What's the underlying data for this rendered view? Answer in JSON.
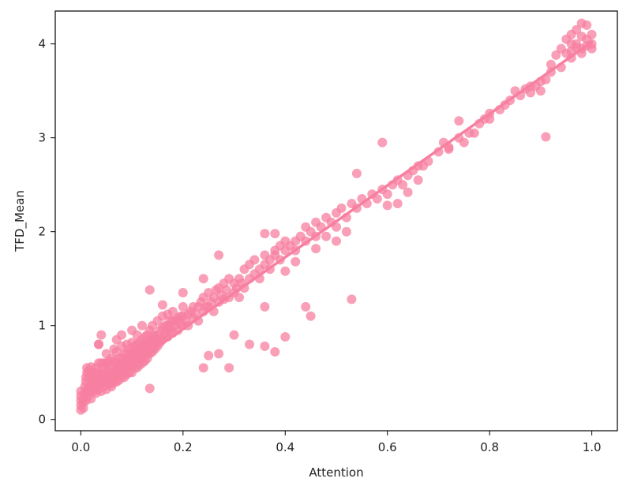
{
  "chart_data": {
    "type": "scatter",
    "xlabel": "Attention",
    "ylabel": "TFD_Mean",
    "xlim": [
      -0.05,
      1.05
    ],
    "ylim": [
      -0.12,
      4.35
    ],
    "xticks": [
      0.0,
      0.2,
      0.4,
      0.6,
      0.8,
      1.0
    ],
    "xtick_labels": [
      "0.0",
      "0.2",
      "0.4",
      "0.6",
      "0.8",
      "1.0"
    ],
    "yticks": [
      0,
      1,
      2,
      3,
      4
    ],
    "ytick_labels": [
      "0",
      "1",
      "2",
      "3",
      "4"
    ],
    "grid": false,
    "legend": "none",
    "color": "#f77fa0",
    "regression_line": {
      "x": [
        0.0,
        1.0
      ],
      "y": [
        0.2,
        4.02
      ]
    },
    "points": [
      [
        0.0,
        0.1
      ],
      [
        0.0,
        0.15
      ],
      [
        0.0,
        0.2
      ],
      [
        0.0,
        0.25
      ],
      [
        0.0,
        0.3
      ],
      [
        0.005,
        0.12
      ],
      [
        0.005,
        0.18
      ],
      [
        0.005,
        0.22
      ],
      [
        0.008,
        0.28
      ],
      [
        0.008,
        0.35
      ],
      [
        0.01,
        0.2
      ],
      [
        0.01,
        0.3
      ],
      [
        0.01,
        0.4
      ],
      [
        0.012,
        0.5
      ],
      [
        0.012,
        0.55
      ],
      [
        0.015,
        0.25
      ],
      [
        0.015,
        0.35
      ],
      [
        0.015,
        0.45
      ],
      [
        0.018,
        0.3
      ],
      [
        0.02,
        0.22
      ],
      [
        0.02,
        0.35
      ],
      [
        0.02,
        0.48
      ],
      [
        0.02,
        0.56
      ],
      [
        0.022,
        0.4
      ],
      [
        0.025,
        0.3
      ],
      [
        0.025,
        0.38
      ],
      [
        0.025,
        0.5
      ],
      [
        0.028,
        0.42
      ],
      [
        0.03,
        0.28
      ],
      [
        0.03,
        0.35
      ],
      [
        0.03,
        0.45
      ],
      [
        0.03,
        0.55
      ],
      [
        0.032,
        0.5
      ],
      [
        0.035,
        0.32
      ],
      [
        0.035,
        0.42
      ],
      [
        0.035,
        0.6
      ],
      [
        0.035,
        0.8
      ],
      [
        0.038,
        0.38
      ],
      [
        0.04,
        0.3
      ],
      [
        0.04,
        0.4
      ],
      [
        0.04,
        0.5
      ],
      [
        0.04,
        0.6
      ],
      [
        0.042,
        0.45
      ],
      [
        0.045,
        0.35
      ],
      [
        0.045,
        0.48
      ],
      [
        0.045,
        0.55
      ],
      [
        0.048,
        0.42
      ],
      [
        0.05,
        0.32
      ],
      [
        0.05,
        0.4
      ],
      [
        0.05,
        0.5
      ],
      [
        0.05,
        0.6
      ],
      [
        0.05,
        0.7
      ],
      [
        0.052,
        0.45
      ],
      [
        0.055,
        0.38
      ],
      [
        0.055,
        0.48
      ],
      [
        0.055,
        0.62
      ],
      [
        0.058,
        0.42
      ],
      [
        0.06,
        0.35
      ],
      [
        0.06,
        0.45
      ],
      [
        0.06,
        0.55
      ],
      [
        0.06,
        0.65
      ],
      [
        0.062,
        0.5
      ],
      [
        0.065,
        0.4
      ],
      [
        0.065,
        0.5
      ],
      [
        0.065,
        0.62
      ],
      [
        0.065,
        0.75
      ],
      [
        0.068,
        0.48
      ],
      [
        0.07,
        0.4
      ],
      [
        0.07,
        0.52
      ],
      [
        0.07,
        0.6
      ],
      [
        0.07,
        0.72
      ],
      [
        0.07,
        0.85
      ],
      [
        0.072,
        0.55
      ],
      [
        0.075,
        0.42
      ],
      [
        0.075,
        0.5
      ],
      [
        0.075,
        0.65
      ],
      [
        0.078,
        0.55
      ],
      [
        0.08,
        0.45
      ],
      [
        0.08,
        0.55
      ],
      [
        0.08,
        0.65
      ],
      [
        0.08,
        0.78
      ],
      [
        0.08,
        0.9
      ],
      [
        0.082,
        0.6
      ],
      [
        0.085,
        0.45
      ],
      [
        0.085,
        0.58
      ],
      [
        0.085,
        0.7
      ],
      [
        0.088,
        0.6
      ],
      [
        0.09,
        0.48
      ],
      [
        0.09,
        0.6
      ],
      [
        0.09,
        0.7
      ],
      [
        0.09,
        0.8
      ],
      [
        0.092,
        0.65
      ],
      [
        0.095,
        0.5
      ],
      [
        0.095,
        0.62
      ],
      [
        0.095,
        0.75
      ],
      [
        0.098,
        0.68
      ],
      [
        0.1,
        0.5
      ],
      [
        0.1,
        0.62
      ],
      [
        0.1,
        0.72
      ],
      [
        0.1,
        0.82
      ],
      [
        0.1,
        0.95
      ],
      [
        0.102,
        0.7
      ],
      [
        0.105,
        0.55
      ],
      [
        0.105,
        0.65
      ],
      [
        0.105,
        0.78
      ],
      [
        0.108,
        0.7
      ],
      [
        0.11,
        0.55
      ],
      [
        0.11,
        0.68
      ],
      [
        0.11,
        0.8
      ],
      [
        0.11,
        0.9
      ],
      [
        0.112,
        0.75
      ],
      [
        0.115,
        0.58
      ],
      [
        0.115,
        0.7
      ],
      [
        0.115,
        0.82
      ],
      [
        0.118,
        0.72
      ],
      [
        0.12,
        0.6
      ],
      [
        0.12,
        0.72
      ],
      [
        0.12,
        0.85
      ],
      [
        0.12,
        1.0
      ],
      [
        0.122,
        0.78
      ],
      [
        0.125,
        0.62
      ],
      [
        0.125,
        0.75
      ],
      [
        0.125,
        0.88
      ],
      [
        0.128,
        0.8
      ],
      [
        0.13,
        0.65
      ],
      [
        0.13,
        0.78
      ],
      [
        0.13,
        0.9
      ],
      [
        0.132,
        0.82
      ],
      [
        0.135,
        0.7
      ],
      [
        0.135,
        0.8
      ],
      [
        0.135,
        0.95
      ],
      [
        0.138,
        0.85
      ],
      [
        0.14,
        0.72
      ],
      [
        0.14,
        0.85
      ],
      [
        0.14,
        1.0
      ],
      [
        0.142,
        0.9
      ],
      [
        0.145,
        0.75
      ],
      [
        0.145,
        0.88
      ],
      [
        0.148,
        0.82
      ],
      [
        0.15,
        0.78
      ],
      [
        0.15,
        0.9
      ],
      [
        0.15,
        1.05
      ],
      [
        0.155,
        0.82
      ],
      [
        0.155,
        0.95
      ],
      [
        0.16,
        0.85
      ],
      [
        0.16,
        0.98
      ],
      [
        0.16,
        1.1
      ],
      [
        0.165,
        0.9
      ],
      [
        0.165,
        1.0
      ],
      [
        0.17,
        0.88
      ],
      [
        0.17,
        1.0
      ],
      [
        0.17,
        1.12
      ],
      [
        0.175,
        0.95
      ],
      [
        0.175,
        1.05
      ],
      [
        0.18,
        0.92
      ],
      [
        0.18,
        1.05
      ],
      [
        0.18,
        1.15
      ],
      [
        0.185,
        1.0
      ],
      [
        0.19,
        0.95
      ],
      [
        0.19,
        1.08
      ],
      [
        0.195,
        1.02
      ],
      [
        0.2,
        1.0
      ],
      [
        0.2,
        1.1
      ],
      [
        0.2,
        1.2
      ],
      [
        0.205,
        1.05
      ],
      [
        0.21,
        1.12
      ],
      [
        0.21,
        1.0
      ],
      [
        0.215,
        1.15
      ],
      [
        0.22,
        1.08
      ],
      [
        0.22,
        1.2
      ],
      [
        0.225,
        1.12
      ],
      [
        0.23,
        1.2
      ],
      [
        0.23,
        1.05
      ],
      [
        0.235,
        1.25
      ],
      [
        0.24,
        1.15
      ],
      [
        0.24,
        1.3
      ],
      [
        0.245,
        1.2
      ],
      [
        0.25,
        1.2
      ],
      [
        0.25,
        1.35
      ],
      [
        0.255,
        1.25
      ],
      [
        0.26,
        1.15
      ],
      [
        0.26,
        1.3
      ],
      [
        0.265,
        1.38
      ],
      [
        0.27,
        1.25
      ],
      [
        0.27,
        1.4
      ],
      [
        0.275,
        1.32
      ],
      [
        0.28,
        1.28
      ],
      [
        0.28,
        1.45
      ],
      [
        0.285,
        1.38
      ],
      [
        0.29,
        1.3
      ],
      [
        0.29,
        1.5
      ],
      [
        0.3,
        1.35
      ],
      [
        0.3,
        1.45
      ],
      [
        0.305,
        1.4
      ],
      [
        0.31,
        1.3
      ],
      [
        0.31,
        1.5
      ],
      [
        0.315,
        1.45
      ],
      [
        0.32,
        1.4
      ],
      [
        0.32,
        1.6
      ],
      [
        0.33,
        1.5
      ],
      [
        0.33,
        1.65
      ],
      [
        0.34,
        1.55
      ],
      [
        0.34,
        1.7
      ],
      [
        0.35,
        1.6
      ],
      [
        0.35,
        1.5
      ],
      [
        0.36,
        1.65
      ],
      [
        0.36,
        1.75
      ],
      [
        0.37,
        1.7
      ],
      [
        0.37,
        1.6
      ],
      [
        0.38,
        1.75
      ],
      [
        0.38,
        1.8
      ],
      [
        0.39,
        1.7
      ],
      [
        0.39,
        1.85
      ],
      [
        0.4,
        1.8
      ],
      [
        0.4,
        1.9
      ],
      [
        0.41,
        1.85
      ],
      [
        0.42,
        1.9
      ],
      [
        0.42,
        1.8
      ],
      [
        0.43,
        1.95
      ],
      [
        0.44,
        1.9
      ],
      [
        0.44,
        2.05
      ],
      [
        0.45,
        2.0
      ],
      [
        0.46,
        2.1
      ],
      [
        0.46,
        1.95
      ],
      [
        0.47,
        2.05
      ],
      [
        0.48,
        2.15
      ],
      [
        0.49,
        2.1
      ],
      [
        0.5,
        2.2
      ],
      [
        0.5,
        2.05
      ],
      [
        0.51,
        2.25
      ],
      [
        0.52,
        2.15
      ],
      [
        0.53,
        2.3
      ],
      [
        0.54,
        2.25
      ],
      [
        0.55,
        2.35
      ],
      [
        0.56,
        2.3
      ],
      [
        0.57,
        2.4
      ],
      [
        0.58,
        2.35
      ],
      [
        0.59,
        2.45
      ],
      [
        0.6,
        2.4
      ],
      [
        0.61,
        2.5
      ],
      [
        0.62,
        2.55
      ],
      [
        0.63,
        2.5
      ],
      [
        0.64,
        2.6
      ],
      [
        0.65,
        2.65
      ],
      [
        0.66,
        2.7
      ],
      [
        0.68,
        2.75
      ],
      [
        0.7,
        2.85
      ],
      [
        0.72,
        2.9
      ],
      [
        0.74,
        3.0
      ],
      [
        0.76,
        3.05
      ],
      [
        0.78,
        3.15
      ],
      [
        0.8,
        3.2
      ],
      [
        0.82,
        3.3
      ],
      [
        0.84,
        3.4
      ],
      [
        0.86,
        3.45
      ],
      [
        0.88,
        3.55
      ],
      [
        0.9,
        3.6
      ],
      [
        0.92,
        3.7
      ],
      [
        0.94,
        3.75
      ],
      [
        0.96,
        3.85
      ],
      [
        0.98,
        3.95
      ],
      [
        1.0,
        4.0
      ],
      [
        0.01,
        0.45
      ],
      [
        0.015,
        0.52
      ],
      [
        0.03,
        0.4
      ],
      [
        0.035,
        0.48
      ],
      [
        0.045,
        0.6
      ],
      [
        0.055,
        0.55
      ],
      [
        0.065,
        0.45
      ],
      [
        0.075,
        0.58
      ],
      [
        0.085,
        0.52
      ],
      [
        0.095,
        0.58
      ],
      [
        0.105,
        0.62
      ],
      [
        0.115,
        0.65
      ],
      [
        0.125,
        0.7
      ],
      [
        0.135,
        0.75
      ],
      [
        0.145,
        0.8
      ],
      [
        0.155,
        0.85
      ],
      [
        0.165,
        0.92
      ],
      [
        0.175,
        0.98
      ],
      [
        0.185,
        1.05
      ],
      [
        0.195,
        1.1
      ],
      [
        0.06,
        0.38
      ],
      [
        0.07,
        0.46
      ],
      [
        0.08,
        0.5
      ],
      [
        0.09,
        0.55
      ],
      [
        0.1,
        0.58
      ],
      [
        0.11,
        0.6
      ],
      [
        0.12,
        0.66
      ],
      [
        0.13,
        0.7
      ],
      [
        0.14,
        0.76
      ],
      [
        0.15,
        0.84
      ],
      [
        0.035,
        0.8
      ],
      [
        0.04,
        0.9
      ],
      [
        0.135,
        1.38
      ],
      [
        0.135,
        0.33
      ],
      [
        0.16,
        1.22
      ],
      [
        0.2,
        1.35
      ],
      [
        0.24,
        1.5
      ],
      [
        0.27,
        1.75
      ],
      [
        0.29,
        0.55
      ],
      [
        0.27,
        0.7
      ],
      [
        0.24,
        0.55
      ],
      [
        0.25,
        0.68
      ],
      [
        0.3,
        0.9
      ],
      [
        0.33,
        0.8
      ],
      [
        0.36,
        0.78
      ],
      [
        0.36,
        1.2
      ],
      [
        0.38,
        1.98
      ],
      [
        0.38,
        0.72
      ],
      [
        0.4,
        0.88
      ],
      [
        0.44,
        1.2
      ],
      [
        0.45,
        1.1
      ],
      [
        0.53,
        1.28
      ],
      [
        0.36,
        1.98
      ],
      [
        0.4,
        1.58
      ],
      [
        0.42,
        1.68
      ],
      [
        0.46,
        1.82
      ],
      [
        0.48,
        1.95
      ],
      [
        0.5,
        1.9
      ],
      [
        0.52,
        2.0
      ],
      [
        0.54,
        2.62
      ],
      [
        0.59,
        2.95
      ],
      [
        0.6,
        2.28
      ],
      [
        0.62,
        2.3
      ],
      [
        0.64,
        2.42
      ],
      [
        0.66,
        2.55
      ],
      [
        0.67,
        2.7
      ],
      [
        0.71,
        2.95
      ],
      [
        0.72,
        2.88
      ],
      [
        0.74,
        3.18
      ],
      [
        0.75,
        2.95
      ],
      [
        0.77,
        3.05
      ],
      [
        0.79,
        3.2
      ],
      [
        0.8,
        3.26
      ],
      [
        0.83,
        3.35
      ],
      [
        0.85,
        3.5
      ],
      [
        0.87,
        3.52
      ],
      [
        0.88,
        3.48
      ],
      [
        0.89,
        3.55
      ],
      [
        0.9,
        3.5
      ],
      [
        0.91,
        3.01
      ],
      [
        0.91,
        3.62
      ],
      [
        0.92,
        3.78
      ],
      [
        0.93,
        3.88
      ],
      [
        0.95,
        3.9
      ],
      [
        0.96,
        3.92
      ],
      [
        0.96,
        4.1
      ],
      [
        0.97,
        4.15
      ],
      [
        0.97,
        4.0
      ],
      [
        0.98,
        4.22
      ],
      [
        0.98,
        3.9
      ],
      [
        0.99,
        4.05
      ],
      [
        0.99,
        4.2
      ],
      [
        1.0,
        3.95
      ],
      [
        0.99,
        3.98
      ],
      [
        0.98,
        4.08
      ],
      [
        0.97,
        3.96
      ],
      [
        0.96,
        4.0
      ],
      [
        1.0,
        4.1
      ],
      [
        0.95,
        4.05
      ],
      [
        0.94,
        3.95
      ]
    ]
  }
}
